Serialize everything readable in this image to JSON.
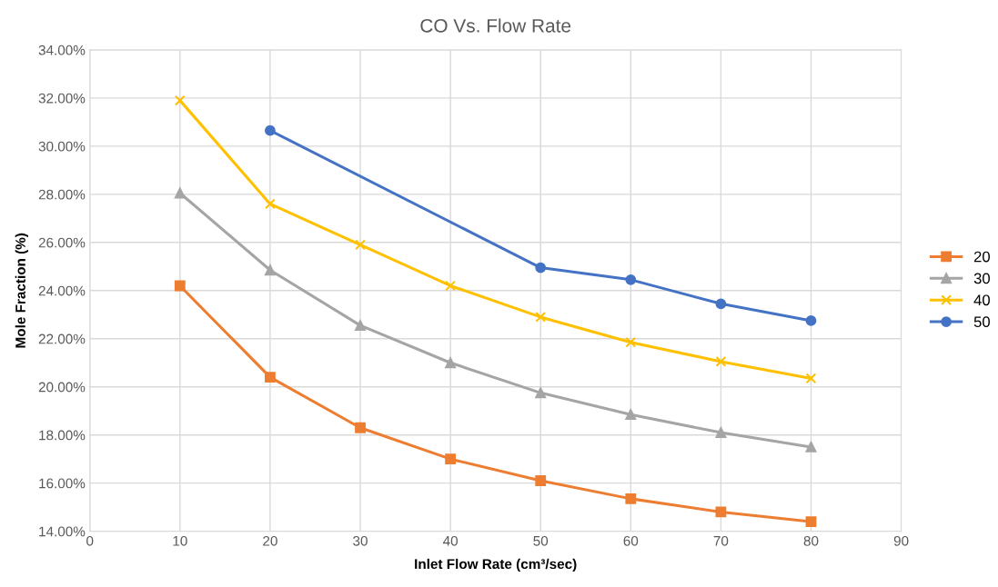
{
  "chart_data": {
    "type": "line",
    "title": "CO Vs. Flow Rate",
    "xlabel": "Inlet Flow Rate (cm³/sec)",
    "ylabel": "Mole Fraction (%)",
    "x": [
      10,
      20,
      30,
      40,
      50,
      60,
      70,
      80
    ],
    "series": [
      {
        "name": "20",
        "color": "#ed7d31",
        "marker": "square",
        "values": [
          24.2,
          20.4,
          18.3,
          17.0,
          16.1,
          15.35,
          14.8,
          14.4
        ]
      },
      {
        "name": "30",
        "color": "#a5a5a5",
        "marker": "triangle",
        "values": [
          28.05,
          24.85,
          22.55,
          21.0,
          19.75,
          18.85,
          18.1,
          17.5
        ]
      },
      {
        "name": "40",
        "color": "#ffc000",
        "marker": "cross",
        "values": [
          31.9,
          27.6,
          25.9,
          24.2,
          22.9,
          21.85,
          21.05,
          20.35
        ]
      },
      {
        "name": "50",
        "color": "#4472c4",
        "marker": "circle",
        "x": [
          20,
          50,
          60,
          70,
          80
        ],
        "values": [
          30.65,
          24.95,
          24.45,
          23.45,
          22.75
        ]
      }
    ],
    "xlim": [
      0,
      90
    ],
    "xticks": [
      0,
      10,
      20,
      30,
      40,
      50,
      60,
      70,
      80,
      90
    ],
    "ylim": [
      14,
      34
    ],
    "yticks": [
      {
        "value": 14,
        "label": "14.00%"
      },
      {
        "value": 16,
        "label": "16.00%"
      },
      {
        "value": 18,
        "label": "18.00%"
      },
      {
        "value": 20,
        "label": "20.00%"
      },
      {
        "value": 22,
        "label": "22.00%"
      },
      {
        "value": 24,
        "label": "24.00%"
      },
      {
        "value": 26,
        "label": "26.00%"
      },
      {
        "value": 28,
        "label": "28.00%"
      },
      {
        "value": 30,
        "label": "30.00%"
      },
      {
        "value": 32,
        "label": "32.00%"
      },
      {
        "value": 34,
        "label": "34.00%"
      }
    ],
    "grid": true,
    "legend": "right",
    "line_style": "solid"
  }
}
